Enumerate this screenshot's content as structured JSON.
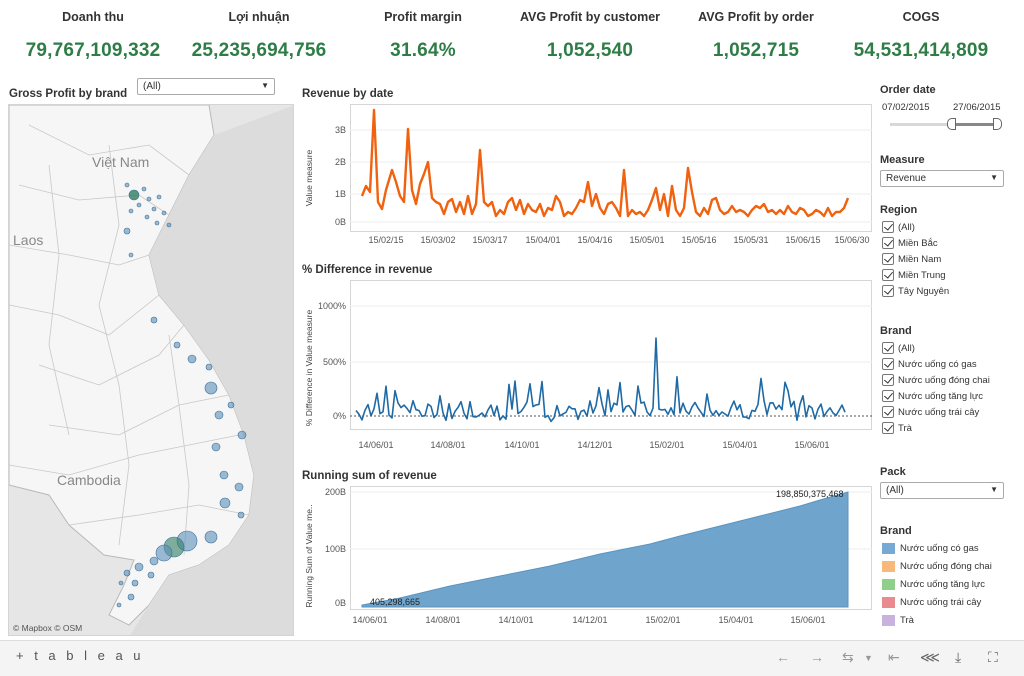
{
  "kpis": [
    {
      "label": "Doanh thu",
      "value": "79,767,109,332"
    },
    {
      "label": "Lợi nhuận",
      "value": "25,235,694,756"
    },
    {
      "label": "Profit margin",
      "value": "31.64%"
    },
    {
      "label": "AVG Profit by customer",
      "value": "1,052,540"
    },
    {
      "label": "AVG Profit by order",
      "value": "1,052,715"
    },
    {
      "label": "COGS",
      "value": "54,531,414,809"
    }
  ],
  "map": {
    "title": "Gross Profit by brand",
    "filter_value": "(All)",
    "labels": {
      "vietnam": "Việt Nam",
      "laos": "Laos",
      "cambodia": "Cambodia"
    },
    "attribution": "© Mapbox  © OSM"
  },
  "charts": {
    "revenue": {
      "title": "Revenue by date",
      "ylabel": "Value measure",
      "yticks": [
        "3B",
        "2B",
        "1B",
        "0B"
      ],
      "xticks": [
        "15/02/15",
        "15/03/02",
        "15/03/17",
        "15/04/01",
        "15/04/16",
        "15/05/01",
        "15/05/16",
        "15/05/31",
        "15/06/15",
        "15/06/30"
      ]
    },
    "diff": {
      "title": "% Difference in revenue",
      "ylabel": "% Difference in Value measure",
      "yticks": [
        "1000%",
        "500%",
        "0%"
      ],
      "xticks": [
        "14/06/01",
        "14/08/01",
        "14/10/01",
        "14/12/01",
        "15/02/01",
        "15/04/01",
        "15/06/01"
      ]
    },
    "running": {
      "title": "Running sum of revenue",
      "ylabel": "Running Sum of Value me..",
      "yticks": [
        "200B",
        "100B",
        "0B"
      ],
      "xticks": [
        "14/06/01",
        "14/08/01",
        "14/10/01",
        "14/12/01",
        "15/02/01",
        "15/04/01",
        "15/06/01"
      ],
      "start_label": "405,298,665",
      "end_label": "198,850,375,468"
    }
  },
  "filters": {
    "order_date": {
      "title": "Order date",
      "start": "07/02/2015",
      "end": "27/06/2015"
    },
    "measure": {
      "title": "Measure",
      "value": "Revenue"
    },
    "region": {
      "title": "Region",
      "items": [
        "(All)",
        "Miền Bắc",
        "Miền Nam",
        "Miền Trung",
        "Tây Nguyên"
      ]
    },
    "brand": {
      "title": "Brand",
      "items": [
        "(All)",
        "Nước uống có gas",
        "Nước uống đóng chai",
        "Nước uống tăng lực",
        "Nước uống trái cây",
        "Trà"
      ]
    },
    "pack": {
      "title": "Pack",
      "value": "(All)"
    }
  },
  "brand_legend": {
    "title": "Brand",
    "items": [
      {
        "label": "Nước uống có gas",
        "color": "#76a9d4"
      },
      {
        "label": "Nước uống đóng chai",
        "color": "#f8b879"
      },
      {
        "label": "Nước uống tăng lực",
        "color": "#8fcf8a"
      },
      {
        "label": "Nước uống trái cây",
        "color": "#e98a8e"
      },
      {
        "label": "Trà",
        "color": "#c7b3de"
      }
    ]
  },
  "footer": {
    "logo": "+ t a b l e a u"
  },
  "colors": {
    "kpi": "#2e7d46",
    "revenue_line": "#f0620f",
    "diff_line": "#1f6aa5",
    "area": "#6fa5cc"
  }
}
